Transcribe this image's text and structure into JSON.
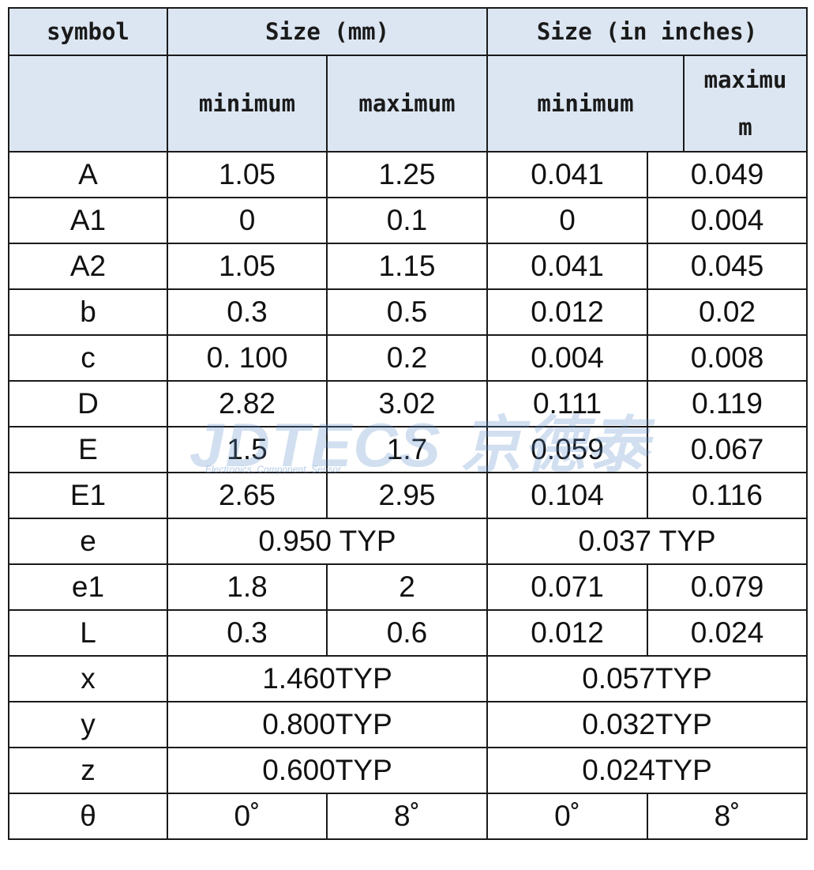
{
  "header": {
    "symbol": "symbol",
    "size_mm": "Size (mm)",
    "size_in": "Size (in inches)",
    "mm_min": "minimum",
    "mm_max": "maximum",
    "in_min": "minimum",
    "in_max_line1": "maximu",
    "in_max_line2": "m"
  },
  "rows": [
    {
      "symbol": "A",
      "mm_min": "1.05",
      "mm_max": "1.25",
      "in_min": "0.041",
      "in_max": "0.049"
    },
    {
      "symbol": "A1",
      "mm_min": "0",
      "mm_max": "0.1",
      "in_min": "0",
      "in_max": "0.004"
    },
    {
      "symbol": "A2",
      "mm_min": "1.05",
      "mm_max": "1.15",
      "in_min": "0.041",
      "in_max": "0.045"
    },
    {
      "symbol": "b",
      "mm_min": "0.3",
      "mm_max": "0.5",
      "in_min": "0.012",
      "in_max": "0.02"
    },
    {
      "symbol": "c",
      "mm_min": "0. 100",
      "mm_max": "0.2",
      "in_min": "0.004",
      "in_max": "0.008"
    },
    {
      "symbol": "D",
      "mm_min": "2.82",
      "mm_max": "3.02",
      "in_min": "0.111",
      "in_max": "0.119"
    },
    {
      "symbol": "E",
      "mm_min": "1.5",
      "mm_max": "1.7",
      "in_min": "0.059",
      "in_max": "0.067"
    },
    {
      "symbol": "E1",
      "mm_min": "2.65",
      "mm_max": "2.95",
      "in_min": "0.104",
      "in_max": "0.116"
    },
    {
      "symbol": "e",
      "mm_typ": "0.950 TYP",
      "in_typ": "0.037 TYP"
    },
    {
      "symbol": "e1",
      "mm_min": "1.8",
      "mm_max": "2",
      "in_min": "0.071",
      "in_max": "0.079"
    },
    {
      "symbol": "L",
      "mm_min": "0.3",
      "mm_max": "0.6",
      "in_min": "0.012",
      "in_max": "0.024"
    },
    {
      "symbol": "x",
      "mm_typ": "1.460TYP",
      "in_typ": "0.057TYP"
    },
    {
      "symbol": "y",
      "mm_typ": "0.800TYP",
      "in_typ": "0.032TYP"
    },
    {
      "symbol": "z",
      "mm_typ": "0.600TYP",
      "in_typ": "0.024TYP"
    },
    {
      "symbol": "θ",
      "mm_min": "0˚",
      "mm_max": "8˚",
      "in_min": "0˚",
      "in_max": "8˚"
    }
  ],
  "watermark": {
    "text": "JDTECS 京德泰",
    "sub": "Electronics, Component, Sensor",
    "color": "#5a8cc8"
  }
}
